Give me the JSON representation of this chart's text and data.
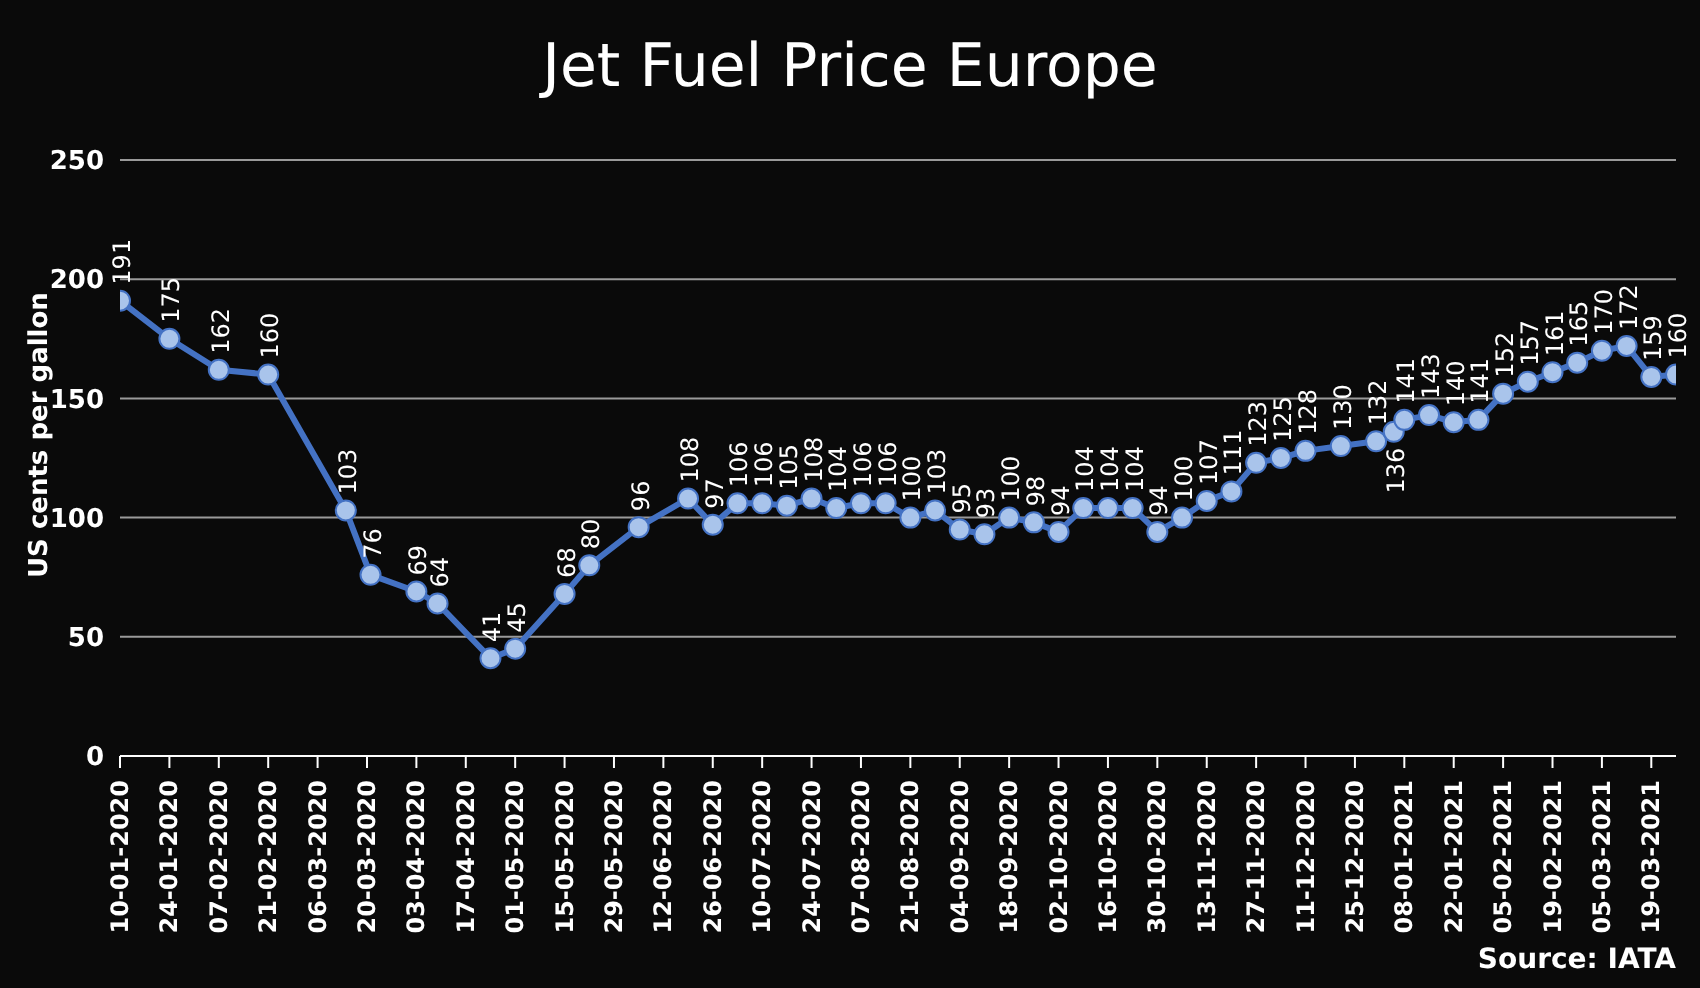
{
  "chart_data": {
    "type": "line",
    "title": "Jet Fuel Price Europe",
    "ylabel": "US cents per gallon",
    "annotations": [
      "Source: IATA"
    ],
    "x": [
      "2020-01-10",
      "2020-01-24",
      "2020-02-07",
      "2020-02-21",
      "2020-03-14",
      "2020-03-21",
      "2020-04-03",
      "2020-04-09",
      "2020-04-24",
      "2020-05-01",
      "2020-05-15",
      "2020-05-22",
      "2020-06-05",
      "2020-06-19",
      "2020-06-26",
      "2020-07-03",
      "2020-07-10",
      "2020-07-17",
      "2020-07-24",
      "2020-07-31",
      "2020-08-07",
      "2020-08-14",
      "2020-08-21",
      "2020-08-28",
      "2020-09-04",
      "2020-09-11",
      "2020-09-18",
      "2020-09-25",
      "2020-10-02",
      "2020-10-09",
      "2020-10-16",
      "2020-10-23",
      "2020-10-30",
      "2020-11-06",
      "2020-11-13",
      "2020-11-20",
      "2020-11-27",
      "2020-12-04",
      "2020-12-11",
      "2020-12-21",
      "2020-12-31",
      "2021-01-05",
      "2021-01-08",
      "2021-01-15",
      "2021-01-22",
      "2021-01-29",
      "2021-02-05",
      "2021-02-12",
      "2021-02-19",
      "2021-02-26",
      "2021-03-05",
      "2021-03-12",
      "2021-03-19",
      "2021-03-26"
    ],
    "series": [
      {
        "color": "#4472c4",
        "values": [
          191,
          175,
          162,
          160,
          103,
          76,
          69,
          64,
          41,
          45,
          68,
          80,
          96,
          108,
          97,
          106,
          106,
          105,
          108,
          104,
          106,
          106,
          100,
          103,
          95,
          93,
          100,
          98,
          94,
          104,
          104,
          104,
          94,
          100,
          107,
          111,
          123,
          125,
          128,
          130,
          132,
          136,
          141,
          143,
          140,
          141,
          152,
          157,
          161,
          165,
          170,
          172,
          159,
          160
        ]
      }
    ],
    "xlim": [
      "2020-01-10",
      "2021-03-26"
    ],
    "xticks": [
      {
        "value": "2020-01-10",
        "label": "10-01-2020"
      },
      {
        "value": "2020-01-24",
        "label": "24-01-2020"
      },
      {
        "value": "2020-02-07",
        "label": "07-02-2020"
      },
      {
        "value": "2020-02-21",
        "label": "21-02-2020"
      },
      {
        "value": "2020-03-06",
        "label": "06-03-2020"
      },
      {
        "value": "2020-03-20",
        "label": "20-03-2020"
      },
      {
        "value": "2020-04-03",
        "label": "03-04-2020"
      },
      {
        "value": "2020-04-17",
        "label": "17-04-2020"
      },
      {
        "value": "2020-05-01",
        "label": "01-05-2020"
      },
      {
        "value": "2020-05-15",
        "label": "15-05-2020"
      },
      {
        "value": "2020-05-29",
        "label": "29-05-2020"
      },
      {
        "value": "2020-06-12",
        "label": "12-06-2020"
      },
      {
        "value": "2020-06-26",
        "label": "26-06-2020"
      },
      {
        "value": "2020-07-10",
        "label": "10-07-2020"
      },
      {
        "value": "2020-07-24",
        "label": "24-07-2020"
      },
      {
        "value": "2020-08-07",
        "label": "07-08-2020"
      },
      {
        "value": "2020-08-21",
        "label": "21-08-2020"
      },
      {
        "value": "2020-09-04",
        "label": "04-09-2020"
      },
      {
        "value": "2020-09-18",
        "label": "18-09-2020"
      },
      {
        "value": "2020-10-02",
        "label": "02-10-2020"
      },
      {
        "value": "2020-10-16",
        "label": "16-10-2020"
      },
      {
        "value": "2020-10-30",
        "label": "30-10-2020"
      },
      {
        "value": "2020-11-13",
        "label": "13-11-2020"
      },
      {
        "value": "2020-11-27",
        "label": "27-11-2020"
      },
      {
        "value": "2020-12-11",
        "label": "11-12-2020"
      },
      {
        "value": "2020-12-25",
        "label": "25-12-2020"
      },
      {
        "value": "2021-01-08",
        "label": "08-01-2021"
      },
      {
        "value": "2021-01-22",
        "label": "22-01-2021"
      },
      {
        "value": "2021-02-05",
        "label": "05-02-2021"
      },
      {
        "value": "2021-02-19",
        "label": "19-02-2021"
      },
      {
        "value": "2021-03-05",
        "label": "05-03-2021"
      },
      {
        "value": "2021-03-19",
        "label": "19-03-2021"
      }
    ],
    "ylim": [
      0,
      250
    ],
    "yticks": [
      0,
      50,
      100,
      150,
      200,
      250
    ],
    "grid": "y",
    "marker": "circle",
    "line_style": "solid",
    "data_labels": true
  }
}
